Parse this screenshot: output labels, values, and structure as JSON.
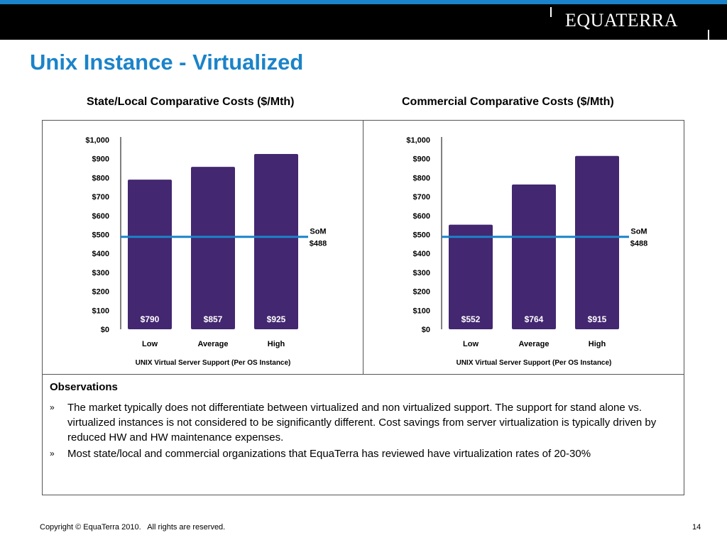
{
  "header": {
    "logo_text": "EQUATERRA",
    "brand_color": "#1b83c9"
  },
  "page_title": "Unix Instance - Virtualized",
  "chart_titles": [
    "State/Local Comparative Costs ($/Mth)",
    "Commercial Comparative Costs ($/Mth)"
  ],
  "chart_data": [
    {
      "type": "bar",
      "title": "State/Local Comparative Costs ($/Mth)",
      "categories": [
        "Low",
        "Average",
        "High"
      ],
      "values": [
        790,
        857,
        925
      ],
      "value_labels": [
        "$790",
        "$857",
        "$925"
      ],
      "xlabel": "UNIX Virtual Server Support  (Per OS Instance)",
      "ylabel": "",
      "ylim": [
        0,
        1000
      ],
      "yticks": [
        0,
        100,
        200,
        300,
        400,
        500,
        600,
        700,
        800,
        900,
        1000
      ],
      "ytick_labels": [
        "$0",
        "$100",
        "$200",
        "$300",
        "$400",
        "$500",
        "$600",
        "$700",
        "$800",
        "$900",
        "$1,000"
      ],
      "bar_color": "#432770",
      "reference_line": {
        "value": 488,
        "label_line1": "SoM",
        "label_line2": "$488",
        "color": "#1b83c9"
      },
      "grid": false,
      "legend": "none"
    },
    {
      "type": "bar",
      "title": "Commercial Comparative Costs ($/Mth)",
      "categories": [
        "Low",
        "Average",
        "High"
      ],
      "values": [
        552,
        764,
        915
      ],
      "value_labels": [
        "$552",
        "$764",
        "$915"
      ],
      "xlabel": "UNIX Virtual Server Support  (Per OS Instance)",
      "ylabel": "",
      "ylim": [
        0,
        1000
      ],
      "yticks": [
        0,
        100,
        200,
        300,
        400,
        500,
        600,
        700,
        800,
        900,
        1000
      ],
      "ytick_labels": [
        "$0",
        "$100",
        "$200",
        "$300",
        "$400",
        "$500",
        "$600",
        "$700",
        "$800",
        "$900",
        "$1,000"
      ],
      "bar_color": "#432770",
      "reference_line": {
        "value": 488,
        "label_line1": "SoM",
        "label_line2": "$488",
        "color": "#1b83c9"
      },
      "grid": false,
      "legend": "none"
    }
  ],
  "observations": {
    "title": "Observations",
    "bullet_mark": "»",
    "items": [
      "The market typically does not differentiate between virtualized and non virtualized support.  The support for stand alone vs. virtualized instances is not considered to be significantly different.  Cost savings from server virtualization is typically driven by reduced HW and HW maintenance expenses.",
      "Most state/local and commercial organizations that EquaTerra has reviewed have virtualization rates of 20-30%"
    ]
  },
  "footer": {
    "copyright": "Copyright © EquaTerra 2010.   All rights are reserved.",
    "page_number": "14"
  }
}
